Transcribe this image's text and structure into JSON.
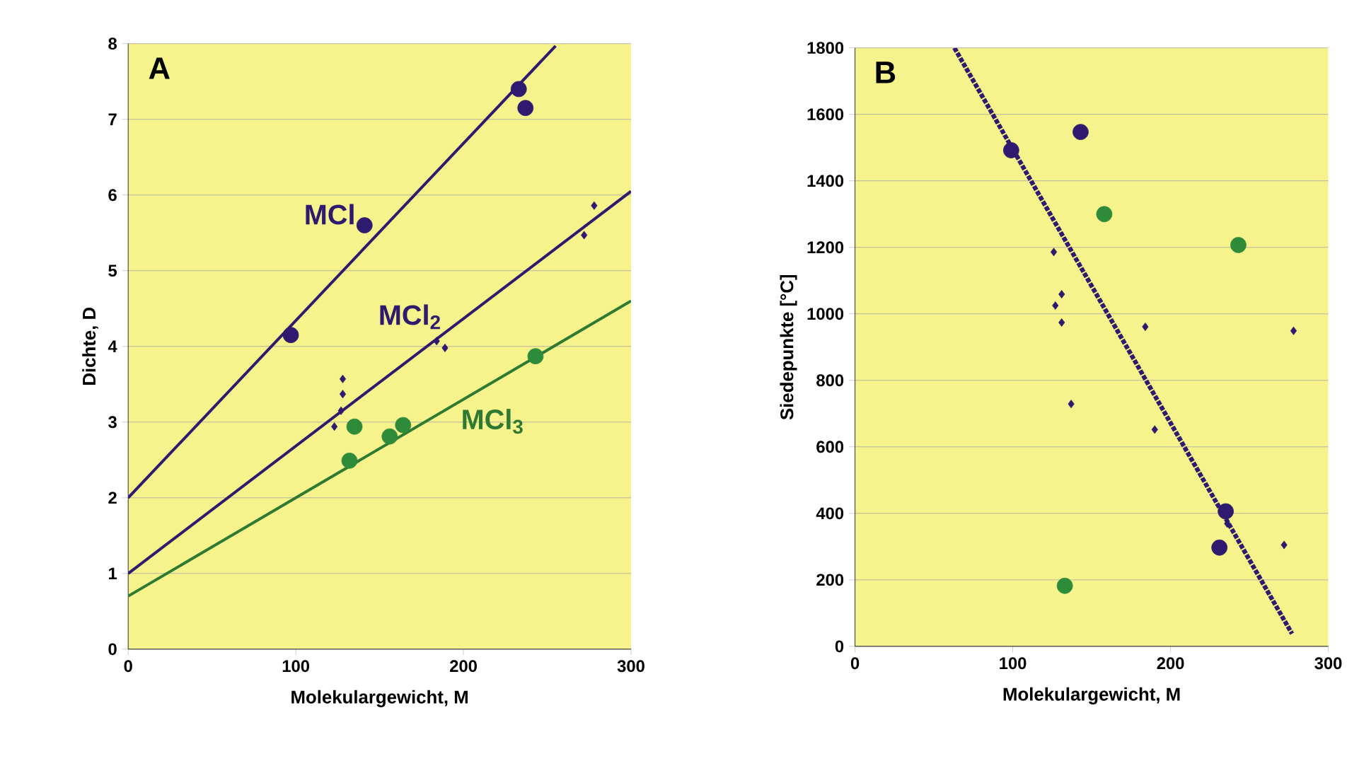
{
  "chart_data": [
    {
      "type": "scatter",
      "title": "A",
      "xlabel": "Molekulargewicht, M",
      "ylabel": "Dichte, D",
      "xlim": [
        0,
        300
      ],
      "ylim": [
        0,
        8
      ],
      "xticks": [
        0,
        100,
        200,
        300
      ],
      "yticks": [
        0,
        1,
        2,
        3,
        4,
        5,
        6,
        7,
        8
      ],
      "grid": "y",
      "series": [
        {
          "marker": "circle",
          "color": "#2e1a6e",
          "x": [
            97,
            141,
            233,
            237
          ],
          "values": [
            4.15,
            5.6,
            7.4,
            7.15
          ]
        },
        {
          "marker": "diamond",
          "color": "#2e1a6e",
          "x": [
            128,
            128,
            127,
            123,
            189,
            184,
            278,
            272
          ],
          "values": [
            3.57,
            3.37,
            3.15,
            2.94,
            3.98,
            4.07,
            5.86,
            5.47
          ]
        },
        {
          "marker": "circle",
          "color": "#2e8b3a",
          "x": [
            135,
            132,
            156,
            164,
            243
          ],
          "values": [
            2.94,
            2.49,
            2.81,
            2.96,
            3.87
          ]
        },
        {
          "type": "line",
          "name": "MCl",
          "line_style": "solid",
          "color": "#2e1a6e",
          "x": [
            0,
            255
          ],
          "values": [
            2.0,
            7.97
          ]
        },
        {
          "type": "line",
          "name": "MCl$_{2}$",
          "line_style": "solid",
          "color": "#2e1a6e",
          "x": [
            0,
            300
          ],
          "values": [
            1.0,
            6.05
          ]
        },
        {
          "type": "line",
          "name": "MCl$_{3}$",
          "line_style": "solid",
          "color": "#2e7a32",
          "x": [
            0,
            300
          ],
          "values": [
            0.7,
            4.6
          ]
        }
      ]
    },
    {
      "type": "scatter",
      "title": "B",
      "xlabel": "Molekulargewicht, M",
      "ylabel": "Siedepunkte [°C]",
      "xlim": [
        0,
        300
      ],
      "ylim": [
        0,
        1800
      ],
      "xticks": [
        0,
        100,
        200,
        300
      ],
      "yticks": [
        0,
        200,
        400,
        600,
        800,
        1000,
        1200,
        1400,
        1600,
        1800
      ],
      "grid": "y",
      "series": [
        {
          "marker": "circle",
          "color": "#2e1a6e",
          "x": [
            99,
            143,
            235,
            231
          ],
          "values": [
            1492,
            1547,
            406,
            297
          ]
        },
        {
          "marker": "circle",
          "color": "#2e8b3a",
          "x": [
            158,
            243,
            133
          ],
          "values": [
            1300,
            1207,
            182
          ]
        },
        {
          "marker": "diamond",
          "color": "#2e1a6e",
          "x": [
            126,
            131,
            127,
            131,
            184,
            278,
            137,
            190,
            272,
            236
          ],
          "values": [
            1186,
            1059,
            1025,
            974,
            961,
            949,
            729,
            652,
            305,
            369
          ]
        },
        {
          "type": "line",
          "line_style": "dotted",
          "color": "#2e1a6e",
          "x": [
            63,
            277
          ],
          "values": [
            1800,
            38
          ]
        }
      ]
    }
  ]
}
